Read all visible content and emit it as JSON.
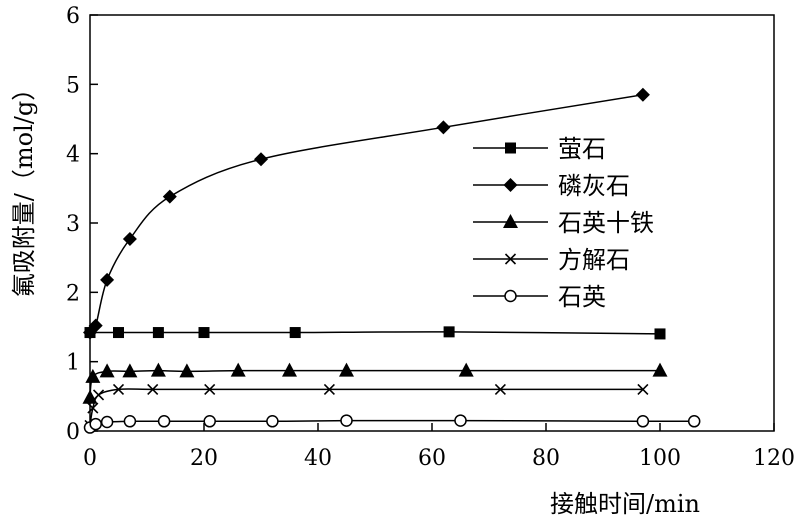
{
  "chart_data": {
    "type": "line",
    "title": "",
    "xlabel": "接触时间/min",
    "ylabel": "氟吸附量/（mol/g）",
    "xlim": [
      0,
      120
    ],
    "ylim": [
      0,
      6
    ],
    "xticks": [
      0,
      20,
      40,
      60,
      80,
      100,
      120
    ],
    "yticks": [
      0,
      1,
      2,
      3,
      4,
      5,
      6
    ],
    "grid": false,
    "legend_position": "center-right",
    "series": [
      {
        "name": "萤石",
        "marker": "square",
        "color": "#000000",
        "x": [
          0,
          5,
          12,
          20,
          36,
          63,
          100
        ],
        "y": [
          1.42,
          1.42,
          1.42,
          1.42,
          1.42,
          1.43,
          1.4
        ]
      },
      {
        "name": "磷灰石",
        "marker": "diamond",
        "color": "#000000",
        "x": [
          0,
          1,
          3,
          7,
          14,
          30,
          62,
          97
        ],
        "y": [
          1.42,
          1.52,
          2.18,
          2.77,
          3.38,
          3.92,
          4.38,
          4.85
        ]
      },
      {
        "name": "石英十铁",
        "marker": "triangle",
        "color": "#000000",
        "x": [
          0,
          0.5,
          3,
          7,
          12,
          17,
          26,
          35,
          45,
          66,
          100
        ],
        "y": [
          0.48,
          0.78,
          0.86,
          0.86,
          0.87,
          0.86,
          0.87,
          0.87,
          0.87,
          0.87,
          0.87
        ]
      },
      {
        "name": "方解石",
        "marker": "x",
        "color": "#000000",
        "x": [
          0,
          0.5,
          1.5,
          5,
          11,
          21,
          42,
          72,
          97
        ],
        "y": [
          0.08,
          0.33,
          0.52,
          0.6,
          0.6,
          0.6,
          0.6,
          0.6,
          0.6
        ]
      },
      {
        "name": "石英",
        "marker": "circle",
        "color": "#000000",
        "x": [
          0,
          1,
          3,
          7,
          13,
          21,
          32,
          45,
          65,
          97,
          106
        ],
        "y": [
          0.05,
          0.1,
          0.13,
          0.14,
          0.14,
          0.14,
          0.14,
          0.15,
          0.15,
          0.14,
          0.14
        ]
      }
    ]
  }
}
